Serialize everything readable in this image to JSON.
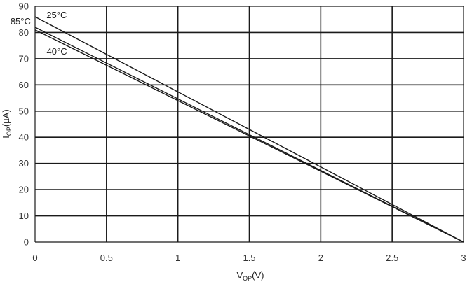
{
  "chart_data": {
    "type": "line",
    "xlabel": {
      "main": "V",
      "sub": "OP",
      "unit": "(V)"
    },
    "ylabel": {
      "main": "I",
      "sub": "OP",
      "unit": "(µA)"
    },
    "xlim": [
      0,
      3
    ],
    "ylim": [
      0,
      90
    ],
    "x_ticks": [
      0,
      0.5,
      1,
      1.5,
      2,
      2.5,
      3
    ],
    "x_tick_labels": [
      "0",
      "0.5",
      "1",
      "1.5",
      "2",
      "2.5",
      "3"
    ],
    "y_ticks": [
      0,
      10,
      20,
      30,
      40,
      50,
      60,
      70,
      80,
      90
    ],
    "y_tick_labels": [
      "0",
      "10",
      "20",
      "30",
      "40",
      "50",
      "60",
      "70",
      "80",
      "90"
    ],
    "grid": true,
    "series": [
      {
        "name": "25°C",
        "x": [
          0,
          3
        ],
        "y": [
          86,
          0
        ],
        "label_x": 0.08,
        "label_y": 85.5,
        "label_anchor": "start"
      },
      {
        "name": "85°C",
        "x": [
          0,
          3
        ],
        "y": [
          82,
          0
        ],
        "label_x": -0.03,
        "label_y": 83,
        "label_anchor": "end"
      },
      {
        "name": "-40°C",
        "x": [
          0,
          3
        ],
        "y": [
          81,
          0
        ],
        "label_x": 0.06,
        "label_y": 71.6,
        "label_anchor": "start"
      }
    ],
    "colors": {
      "line": "#1a1a1a",
      "grid": "#1a1a1a",
      "frame": "#1a1a1a",
      "background": "#ffffff"
    }
  }
}
